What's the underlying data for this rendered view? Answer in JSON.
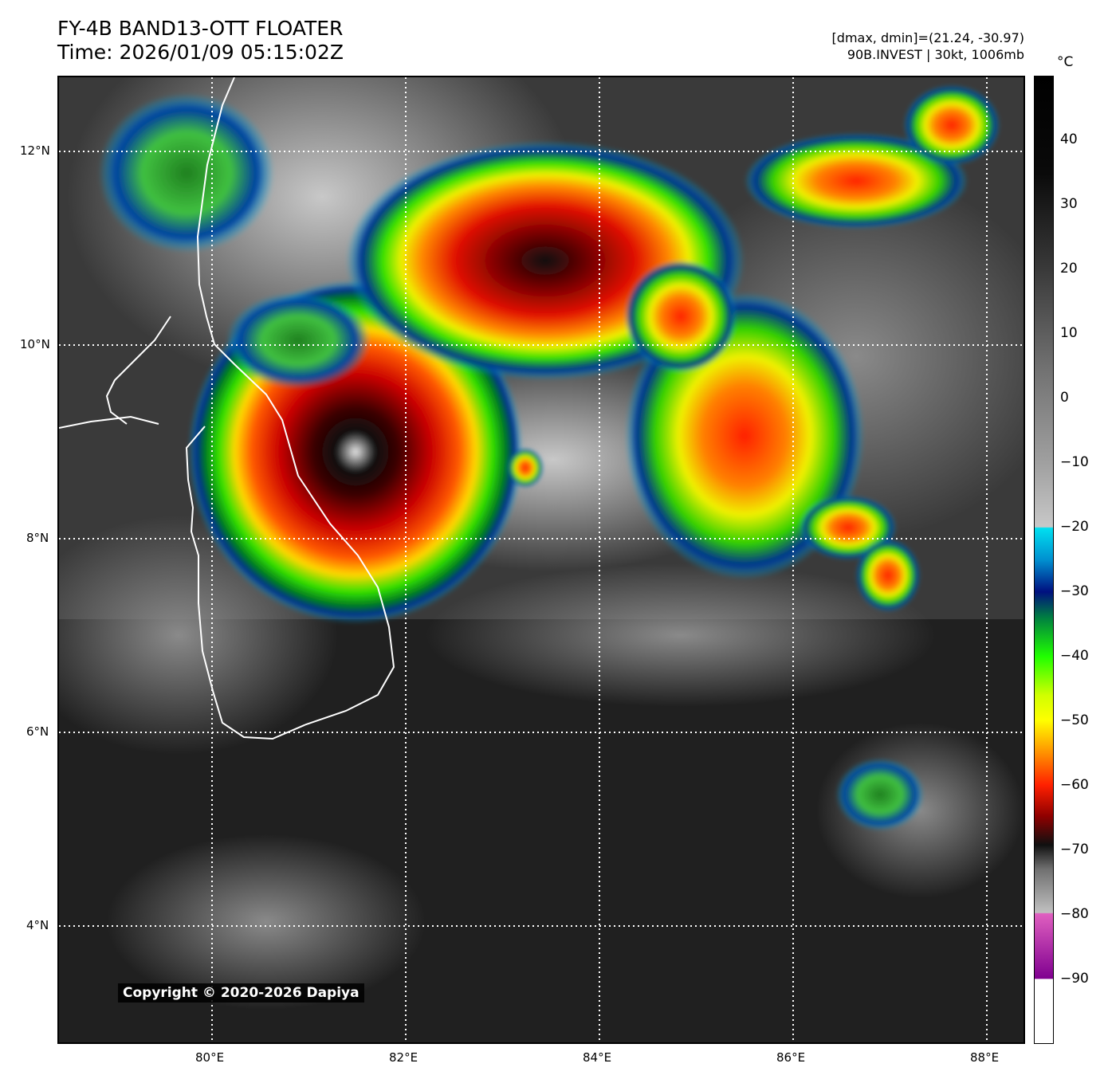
{
  "title": {
    "line1": "FY-4B BAND13-OTT FLOATER",
    "line2": "Time: 2026/01/09 05:15:02Z"
  },
  "info": {
    "line1": "[dmax, dmin]=(21.24, -30.97)",
    "line2": "90B.INVEST | 30kt, 1006mb"
  },
  "axes": {
    "lon_labels": [
      "80°E",
      "82°E",
      "84°E",
      "86°E",
      "88°E"
    ],
    "lat_labels": [
      "12°N",
      "10°N",
      "8°N",
      "6°N",
      "4°N"
    ]
  },
  "colorbar": {
    "unit": "°C",
    "ticks": [
      "40",
      "30",
      "20",
      "10",
      "0",
      "−10",
      "−20",
      "−30",
      "−40",
      "−50",
      "−60",
      "−70",
      "−80",
      "−90"
    ],
    "range": [
      -100,
      50
    ]
  },
  "copyright": "Copyright © 2020-2026 Dapiya",
  "colors": {
    "grid": "#ffffff",
    "coastline": "#ffffff",
    "background_cloudfree": "#1e1e1e"
  }
}
